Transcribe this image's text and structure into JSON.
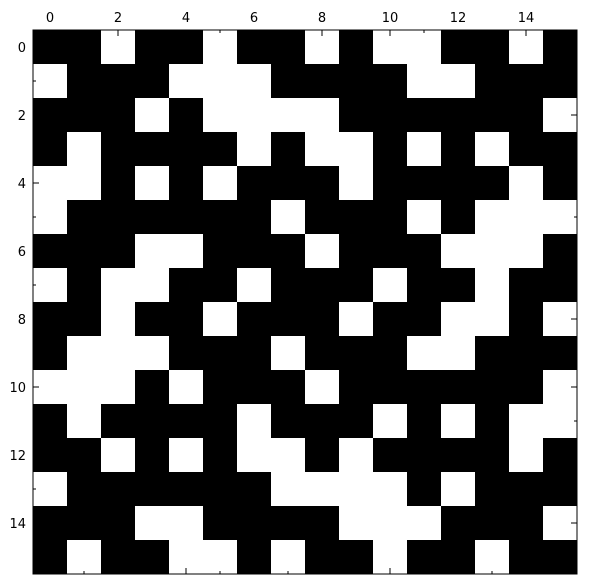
{
  "chart_data": {
    "type": "heatmap",
    "title": "",
    "xlabel": "",
    "ylabel": "",
    "x_axis_position": "top",
    "xlim": [
      -0.5,
      15.5
    ],
    "ylim": [
      -0.5,
      15.5
    ],
    "y_inverted": true,
    "x_ticks": [
      0,
      2,
      4,
      6,
      8,
      10,
      12,
      14
    ],
    "y_ticks": [
      0,
      2,
      4,
      6,
      8,
      10,
      12,
      14
    ],
    "grid": false,
    "colormap": {
      "0": "#ffffff",
      "1": "#000000"
    },
    "matrix": [
      [
        1,
        1,
        0,
        1,
        1,
        0,
        1,
        1,
        0,
        1,
        0,
        0,
        1,
        1,
        0,
        1
      ],
      [
        0,
        1,
        1,
        1,
        0,
        0,
        0,
        1,
        1,
        1,
        1,
        0,
        0,
        1,
        1,
        1
      ],
      [
        1,
        1,
        1,
        0,
        1,
        0,
        0,
        0,
        0,
        1,
        1,
        1,
        1,
        1,
        1,
        0
      ],
      [
        1,
        0,
        1,
        1,
        1,
        1,
        0,
        1,
        0,
        0,
        1,
        0,
        1,
        0,
        1,
        1
      ],
      [
        0,
        0,
        1,
        0,
        1,
        0,
        1,
        1,
        1,
        0,
        1,
        1,
        1,
        1,
        0,
        1
      ],
      [
        0,
        1,
        1,
        1,
        1,
        1,
        1,
        0,
        1,
        1,
        1,
        0,
        1,
        0,
        0,
        0
      ],
      [
        1,
        1,
        1,
        0,
        0,
        1,
        1,
        1,
        0,
        1,
        1,
        1,
        0,
        0,
        0,
        1
      ],
      [
        0,
        1,
        0,
        0,
        1,
        1,
        0,
        1,
        1,
        1,
        0,
        1,
        1,
        0,
        1,
        1
      ],
      [
        1,
        1,
        0,
        1,
        1,
        0,
        1,
        1,
        1,
        0,
        1,
        1,
        0,
        0,
        1,
        0
      ],
      [
        1,
        0,
        0,
        0,
        1,
        1,
        1,
        0,
        1,
        1,
        1,
        0,
        0,
        1,
        1,
        1
      ],
      [
        0,
        0,
        0,
        1,
        0,
        1,
        1,
        1,
        0,
        1,
        1,
        1,
        1,
        1,
        1,
        0
      ],
      [
        1,
        0,
        1,
        1,
        1,
        1,
        0,
        1,
        1,
        1,
        0,
        1,
        0,
        1,
        0,
        0
      ],
      [
        1,
        1,
        0,
        1,
        0,
        1,
        0,
        0,
        1,
        0,
        1,
        1,
        1,
        1,
        0,
        1
      ],
      [
        0,
        1,
        1,
        1,
        1,
        1,
        1,
        0,
        0,
        0,
        0,
        1,
        0,
        1,
        1,
        1
      ],
      [
        1,
        1,
        1,
        0,
        0,
        1,
        1,
        1,
        1,
        0,
        0,
        0,
        1,
        1,
        1,
        0
      ],
      [
        1,
        0,
        1,
        1,
        0,
        0,
        1,
        0,
        1,
        1,
        0,
        1,
        1,
        0,
        1,
        1
      ]
    ]
  }
}
